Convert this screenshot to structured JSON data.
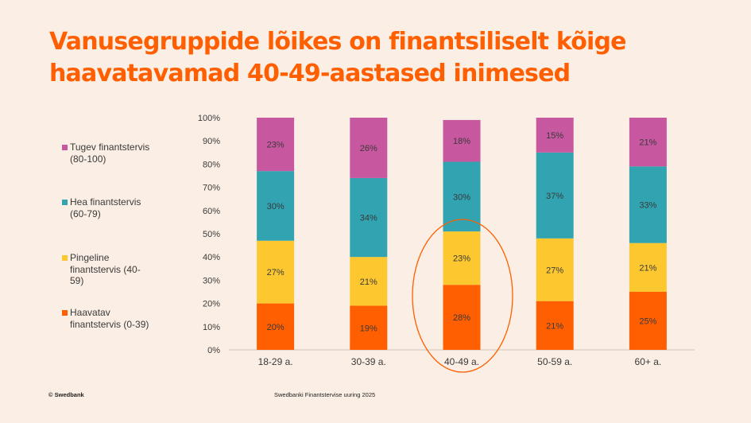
{
  "title": {
    "line1": "Vanusegruppide lõikes on finantsiliselt kõige",
    "line2": "haavatavamad 40-49-aastased inimesed",
    "color": "#ff5f00"
  },
  "legend": [
    {
      "label": "Tugev finantstervis\n(80-100)",
      "color": "#c7579f"
    },
    {
      "label": "Hea finantstervis\n(60-79)",
      "color": "#31a3b1"
    },
    {
      "label": "Pingeline\nfinantstervis (40-\n59)",
      "color": "#fdc82f"
    },
    {
      "label": "Haavatav\nfinantstervis (0-39)",
      "color": "#ff5f00"
    }
  ],
  "chart_data": {
    "type": "bar",
    "stacked": true,
    "categories": [
      "18-29 a.",
      "30-39 a.",
      "40-49 a.",
      "50-59 a.",
      "60+ a."
    ],
    "series": [
      {
        "name": "Haavatav finantstervis (0-39)",
        "color": "#ff5f00",
        "values": [
          20,
          19,
          28,
          21,
          25
        ]
      },
      {
        "name": "Pingeline finantstervis (40-59)",
        "color": "#fdc82f",
        "values": [
          27,
          21,
          23,
          27,
          21
        ]
      },
      {
        "name": "Hea finantstervis (60-79)",
        "color": "#31a3b1",
        "values": [
          30,
          34,
          30,
          37,
          33
        ]
      },
      {
        "name": "Tugev finantstervis (80-100)",
        "color": "#c7579f",
        "values": [
          23,
          26,
          18,
          15,
          21
        ]
      }
    ],
    "ylim": [
      0,
      100
    ],
    "y_ticks": [
      "0%",
      "10%",
      "20%",
      "30%",
      "40%",
      "50%",
      "60%",
      "70%",
      "80%",
      "90%",
      "100%"
    ],
    "value_suffix": "%",
    "highlight_category": "40-49 a.",
    "highlight_color": "#ff5f00"
  },
  "footer": {
    "left": "© Swedbank",
    "center": "Swedbanki Finantstervise uuring 2025"
  }
}
